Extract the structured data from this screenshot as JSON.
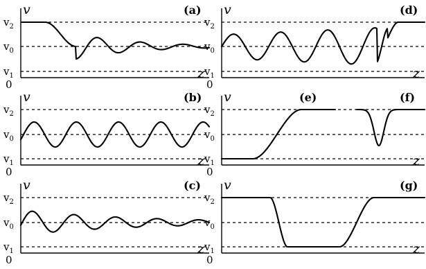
{
  "labels": {
    "vertical_axis": "v",
    "horizontal_axis": "z",
    "origin": "0",
    "v2": {
      "base": "v",
      "sub": "2"
    },
    "v0": {
      "base": "v",
      "sub": "0"
    },
    "v1": {
      "base": "v",
      "sub": "1"
    }
  },
  "panels": [
    {
      "id": "a",
      "tags": [
        "(a)"
      ]
    },
    {
      "id": "b",
      "tags": [
        "(b)"
      ]
    },
    {
      "id": "c",
      "tags": [
        "(c)"
      ]
    },
    {
      "id": "d",
      "tags": [
        "(d)"
      ]
    },
    {
      "id": "ef",
      "tags": [
        "(e)",
        "(f)"
      ]
    },
    {
      "id": "g",
      "tags": [
        "(g)"
      ]
    }
  ]
}
